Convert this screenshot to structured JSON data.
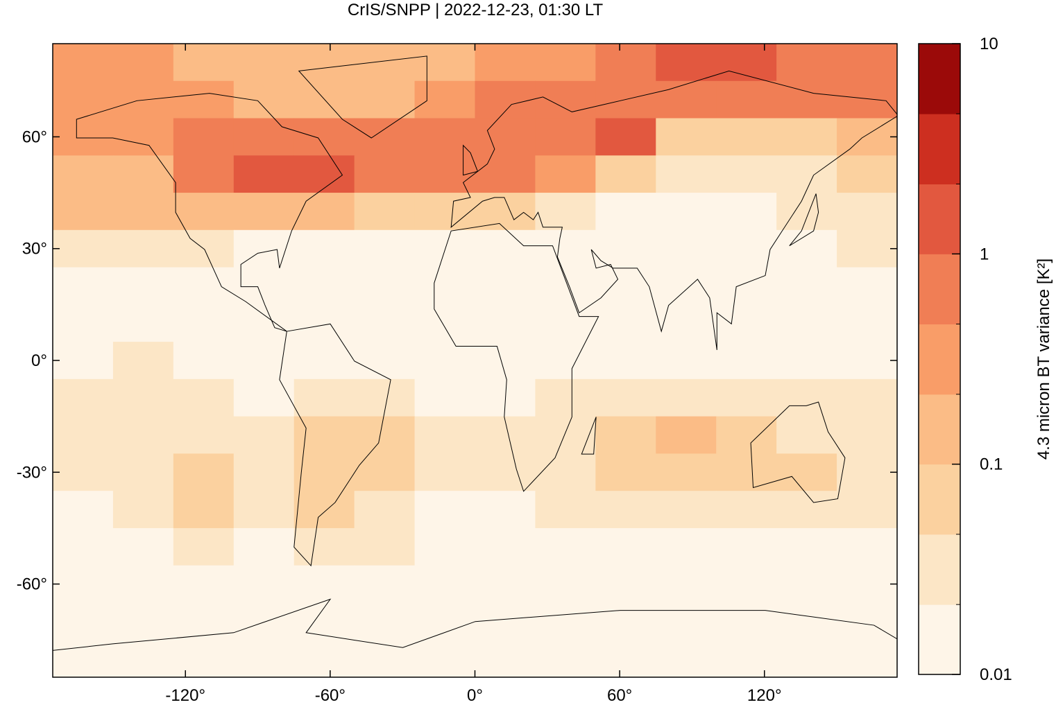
{
  "chart_data": {
    "type": "heatmap",
    "title": "CrIS/SNPP | 2022-12-23, 01:30 LT",
    "xlim": [
      -175,
      175
    ],
    "ylim": [
      -85,
      85
    ],
    "xticks": [
      {
        "value": -120,
        "label": "-120°"
      },
      {
        "value": -60,
        "label": "-60°"
      },
      {
        "value": 0,
        "label": "0°"
      },
      {
        "value": 60,
        "label": "60°"
      },
      {
        "value": 120,
        "label": "120°"
      }
    ],
    "yticks": [
      {
        "value": -60,
        "label": "-60°"
      },
      {
        "value": -30,
        "label": "-30°"
      },
      {
        "value": 0,
        "label": "0°"
      },
      {
        "value": 30,
        "label": "30°"
      },
      {
        "value": 60,
        "label": "60°"
      }
    ],
    "x_edges": [
      -175,
      -150,
      -125,
      -100,
      -75,
      -50,
      -25,
      0,
      25,
      50,
      75,
      100,
      125,
      150,
      175
    ],
    "y_edges": [
      85,
      75,
      65,
      55,
      45,
      35,
      25,
      15,
      5,
      -5,
      -15,
      -25,
      -35,
      -45,
      -55,
      -65,
      -75,
      -85
    ],
    "z": [
      [
        0.3,
        0.3,
        0.2,
        0.2,
        0.2,
        0.2,
        0.2,
        0.3,
        0.4,
        0.6,
        1.5,
        1.2,
        0.8,
        0.5
      ],
      [
        0.4,
        0.3,
        0.3,
        0.2,
        0.15,
        0.2,
        0.3,
        0.5,
        0.6,
        0.8,
        0.8,
        0.9,
        0.6,
        0.6
      ],
      [
        0.3,
        0.3,
        0.5,
        0.6,
        0.5,
        0.5,
        0.6,
        0.9,
        0.8,
        1.5,
        0.05,
        0.05,
        0.05,
        0.1
      ],
      [
        0.15,
        0.2,
        0.6,
        1.2,
        1.0,
        0.6,
        0.7,
        0.9,
        0.3,
        0.05,
        0.03,
        0.03,
        0.03,
        0.05
      ],
      [
        0.1,
        0.1,
        0.2,
        0.15,
        0.1,
        0.08,
        0.05,
        0.05,
        0.03,
        0.02,
        0.02,
        0.02,
        0.03,
        0.04
      ],
      [
        0.03,
        0.03,
        0.03,
        0.02,
        0.02,
        0.02,
        0.02,
        0.02,
        0.02,
        0.02,
        0.02,
        0.02,
        0.02,
        0.03
      ],
      [
        0.02,
        0.02,
        0.02,
        0.02,
        0.02,
        0.02,
        0.02,
        0.02,
        0.02,
        0.02,
        0.02,
        0.02,
        0.02,
        0.02
      ],
      [
        0.02,
        0.02,
        0.02,
        0.02,
        0.02,
        0.02,
        0.02,
        0.02,
        0.02,
        0.02,
        0.02,
        0.02,
        0.02,
        0.02
      ],
      [
        0.02,
        0.03,
        0.02,
        0.02,
        0.02,
        0.02,
        0.02,
        0.02,
        0.02,
        0.02,
        0.02,
        0.02,
        0.02,
        0.02
      ],
      [
        0.03,
        0.03,
        0.03,
        0.02,
        0.03,
        0.03,
        0.02,
        0.02,
        0.03,
        0.03,
        0.03,
        0.03,
        0.03,
        0.03
      ],
      [
        0.03,
        0.03,
        0.03,
        0.03,
        0.08,
        0.06,
        0.03,
        0.03,
        0.04,
        0.06,
        0.1,
        0.06,
        0.04,
        0.03
      ],
      [
        0.03,
        0.03,
        0.08,
        0.03,
        0.06,
        0.06,
        0.03,
        0.03,
        0.04,
        0.06,
        0.05,
        0.05,
        0.06,
        0.04
      ],
      [
        0.02,
        0.03,
        0.06,
        0.03,
        0.05,
        0.04,
        0.02,
        0.02,
        0.03,
        0.03,
        0.03,
        0.03,
        0.04,
        0.03
      ],
      [
        0.02,
        0.02,
        0.03,
        0.02,
        0.04,
        0.03,
        0.02,
        0.02,
        0.02,
        0.02,
        0.02,
        0.02,
        0.02,
        0.02
      ],
      [
        0.015,
        0.015,
        0.015,
        0.015,
        0.015,
        0.015,
        0.015,
        0.015,
        0.015,
        0.015,
        0.015,
        0.015,
        0.015,
        0.015
      ],
      [
        0.015,
        0.015,
        0.015,
        0.015,
        0.015,
        0.015,
        0.015,
        0.015,
        0.015,
        0.015,
        0.015,
        0.015,
        0.015,
        0.015
      ],
      [
        0.015,
        0.015,
        0.015,
        0.015,
        0.015,
        0.015,
        0.015,
        0.015,
        0.015,
        0.015,
        0.015,
        0.015,
        0.015,
        0.015
      ]
    ],
    "colorbar": {
      "label": "4.3 micron BT variance [K²]",
      "scale": "log",
      "lim": [
        0.01,
        10
      ],
      "ticks": [
        0.01,
        0.1,
        1,
        10
      ],
      "levels": [
        0.01,
        0.0215,
        0.0464,
        0.1,
        0.215,
        0.464,
        1,
        2.15,
        4.64,
        10
      ],
      "colors": [
        "#fef5e8",
        "#fce6c6",
        "#fbd19f",
        "#fbbc86",
        "#f99d68",
        "#f07e55",
        "#e2583f",
        "#cd2f20",
        "#9b0a09"
      ]
    }
  }
}
